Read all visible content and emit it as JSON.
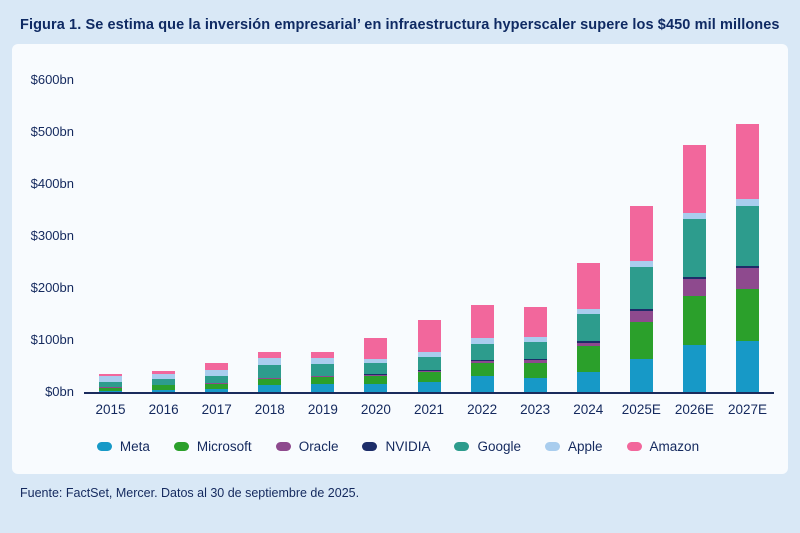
{
  "title": "Figura 1. Se estima que la inversión empresarial’ en infraestructura hyperscaler supere los $450 mil millones",
  "footer": "Fuente: FactSet, Mercer. Datos al 30 de septiembre de 2025.",
  "colors": {
    "page_background": "#d9e8f6",
    "panel_background": "#f8fbfe",
    "text": "#14295e",
    "axis_line": "#1a2b5c"
  },
  "chart_data": {
    "type": "bar",
    "stacked": true,
    "title": "Figura 1. Se estima que la inversión empresarial’ en infraestructura hyperscaler supere los $450 mil millones",
    "xlabel": "",
    "ylabel": "",
    "unit": "$bn",
    "ylim": [
      0,
      600
    ],
    "y_ticks": [
      "$600bn",
      "$500bn",
      "$400bn",
      "$300bn",
      "$200bn",
      "$100bn",
      "$0bn"
    ],
    "grid": false,
    "legend_position": "bottom",
    "categories": [
      "2015",
      "2016",
      "2017",
      "2018",
      "2019",
      "2020",
      "2021",
      "2022",
      "2023",
      "2024",
      "2025E",
      "2026E",
      "2027E"
    ],
    "series": [
      {
        "name": "Meta",
        "color": "#1799c7",
        "values": [
          2.5,
          4.5,
          6.7,
          13.9,
          15.1,
          15.7,
          18.6,
          31.4,
          27.3,
          39.0,
          64.0,
          90.0,
          98.0
        ]
      },
      {
        "name": "Microsoft",
        "color": "#2ba02b",
        "values": [
          5.9,
          8.3,
          8.1,
          11.6,
          13.9,
          15.4,
          20.6,
          23.9,
          28.1,
          49.0,
          70.0,
          95.0,
          100.0
        ]
      },
      {
        "name": "Oracle",
        "color": "#8e4a8e",
        "values": [
          1.0,
          1.2,
          2.0,
          1.7,
          1.6,
          1.6,
          2.1,
          4.5,
          6.9,
          7.0,
          21.0,
          32.0,
          40.0
        ]
      },
      {
        "name": "NVIDIA",
        "color": "#1d2d69",
        "values": [
          0.1,
          0.2,
          0.6,
          0.6,
          0.6,
          1.1,
          1.0,
          1.8,
          1.1,
          3.0,
          4.0,
          5.0,
          5.0
        ]
      },
      {
        "name": "Google",
        "color": "#2d9c8d",
        "values": [
          9.9,
          10.2,
          13.2,
          25.1,
          23.5,
          22.3,
          24.6,
          31.5,
          32.3,
          52.5,
          82.0,
          110.0,
          115.0
        ]
      },
      {
        "name": "Apple",
        "color": "#a9cdee",
        "values": [
          11.2,
          10.0,
          12.5,
          13.3,
          10.5,
          7.3,
          11.1,
          10.7,
          11.0,
          9.5,
          12.0,
          13.0,
          13.0
        ]
      },
      {
        "name": "Amazon",
        "color": "#f2679c",
        "values": [
          4.6,
          6.7,
          12.0,
          11.3,
          12.7,
          40.0,
          61.0,
          63.6,
          57.7,
          88.0,
          105.0,
          130.0,
          144.0
        ]
      }
    ],
    "totals": [
      35.2,
      41.1,
      55.1,
      77.5,
      77.9,
      103.4,
      139.0,
      167.4,
      164.4,
      248.0,
      358.0,
      475.0,
      515.0
    ]
  }
}
